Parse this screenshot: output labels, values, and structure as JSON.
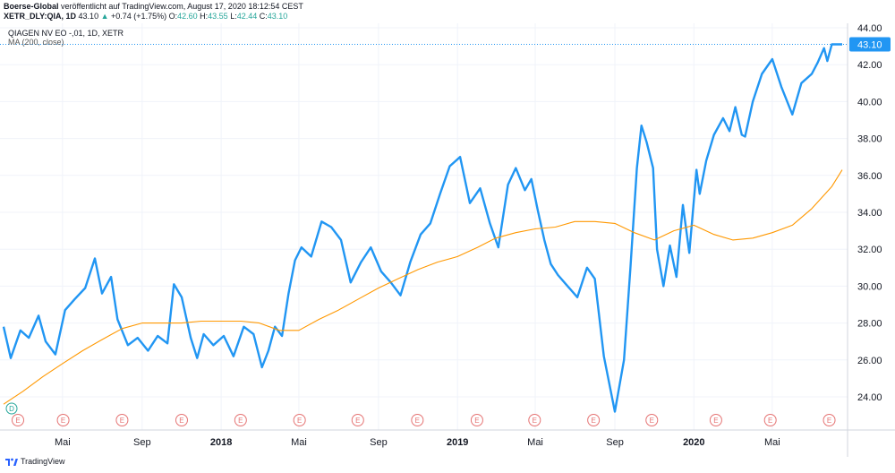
{
  "header": {
    "publisher": "Boerse-Global",
    "published_text": "veröffentlicht auf TradingView.com, August 17, 2020 18:12:54 CEST",
    "symbol": "XETR_DLY:QIA, 1D",
    "last": "43.10",
    "change_arrow": "▲",
    "change": "+0.74 (+1.75%)",
    "open_label": "O:",
    "open": "42.60",
    "high_label": "H:",
    "high": "43.55",
    "low_label": "L:",
    "low": "42.44",
    "close_label": "C:",
    "close": "43.10"
  },
  "legend": {
    "instrument": "QIAGEN NV EO -,01, 1D, XETR",
    "ma": "MA (200, close)"
  },
  "footer": {
    "brand": "TradingView"
  },
  "colors": {
    "price": "#2196f3",
    "ma": "#ff9800",
    "last_badge": "#2196f3",
    "event": "#e57373",
    "dividend": "#26a69a"
  },
  "chart_data": {
    "type": "line",
    "title": "QIAGEN NV EO -,01, 1D, XETR",
    "y_ticks": [
      "24.00",
      "26.00",
      "28.00",
      "30.00",
      "32.00",
      "34.00",
      "36.00",
      "38.00",
      "40.00",
      "42.00",
      "44.00"
    ],
    "ylim": [
      22.3,
      44.3
    ],
    "x_ticks": [
      "Mai",
      "Sep",
      "2018",
      "Mai",
      "Sep",
      "2019",
      "Mai",
      "Sep",
      "2020",
      "Mai"
    ],
    "x_range": [
      "2017-01-30",
      "2020-08-17"
    ],
    "last_value_label": "43.10",
    "grid": true,
    "series": [
      {
        "name": "QIAGEN NV EO -,01, 1D, XETR",
        "x": [
          "2017-01-30",
          "2017-02-10",
          "2017-02-25",
          "2017-03-10",
          "2017-03-25",
          "2017-04-05",
          "2017-04-20",
          "2017-05-05",
          "2017-05-20",
          "2017-06-05",
          "2017-06-20",
          "2017-07-01",
          "2017-07-15",
          "2017-07-25",
          "2017-08-10",
          "2017-08-25",
          "2017-09-10",
          "2017-09-25",
          "2017-10-10",
          "2017-10-20",
          "2017-11-01",
          "2017-11-15",
          "2017-11-25",
          "2017-12-05",
          "2017-12-20",
          "2018-01-05",
          "2018-01-20",
          "2018-02-05",
          "2018-02-20",
          "2018-03-05",
          "2018-03-15",
          "2018-03-25",
          "2018-04-05",
          "2018-04-15",
          "2018-04-25",
          "2018-05-05",
          "2018-05-20",
          "2018-06-05",
          "2018-06-20",
          "2018-07-05",
          "2018-07-20",
          "2018-08-05",
          "2018-08-20",
          "2018-09-05",
          "2018-09-20",
          "2018-10-05",
          "2018-10-20",
          "2018-11-05",
          "2018-11-20",
          "2018-12-05",
          "2018-12-20",
          "2019-01-05",
          "2019-01-20",
          "2019-02-05",
          "2019-02-20",
          "2019-03-05",
          "2019-03-20",
          "2019-04-01",
          "2019-04-15",
          "2019-04-25",
          "2019-05-05",
          "2019-05-15",
          "2019-05-25",
          "2019-06-05",
          "2019-06-20",
          "2019-07-05",
          "2019-07-20",
          "2019-08-01",
          "2019-08-15",
          "2019-09-01",
          "2019-09-15",
          "2019-09-25",
          "2019-10-05",
          "2019-10-12",
          "2019-10-20",
          "2019-10-30",
          "2019-11-05",
          "2019-11-15",
          "2019-11-25",
          "2019-12-05",
          "2019-12-15",
          "2019-12-25",
          "2020-01-05",
          "2020-01-10",
          "2020-01-20",
          "2020-02-01",
          "2020-02-15",
          "2020-02-25",
          "2020-03-05",
          "2020-03-15",
          "2020-03-20",
          "2020-04-01",
          "2020-04-15",
          "2020-05-01",
          "2020-05-15",
          "2020-06-01",
          "2020-06-15",
          "2020-07-01",
          "2020-07-10",
          "2020-07-20",
          "2020-07-25",
          "2020-08-01",
          "2020-08-10",
          "2020-08-17"
        ],
        "values": [
          27.8,
          26.1,
          27.6,
          27.2,
          28.4,
          27.0,
          26.3,
          28.7,
          29.3,
          29.9,
          31.5,
          29.6,
          30.5,
          28.2,
          26.8,
          27.2,
          26.5,
          27.3,
          26.9,
          30.1,
          29.4,
          27.2,
          26.1,
          27.4,
          26.8,
          27.3,
          26.2,
          27.8,
          27.4,
          25.6,
          26.5,
          27.8,
          27.3,
          29.6,
          31.4,
          32.1,
          31.6,
          33.5,
          33.2,
          32.5,
          30.2,
          31.3,
          32.1,
          30.8,
          30.2,
          29.5,
          31.3,
          32.8,
          33.4,
          35.0,
          36.5,
          37.0,
          34.5,
          35.3,
          33.4,
          32.1,
          35.5,
          36.4,
          35.2,
          35.8,
          34.1,
          32.5,
          31.2,
          30.6,
          30.0,
          29.4,
          31.0,
          30.4,
          26.2,
          23.2,
          26.0,
          31.0,
          36.4,
          38.7,
          37.8,
          36.4,
          32.0,
          30.0,
          32.2,
          30.5,
          34.4,
          31.8,
          36.3,
          35.0,
          36.8,
          38.2,
          39.1,
          38.4,
          39.7,
          38.2,
          38.1,
          40.0,
          41.5,
          42.3,
          40.8,
          39.3,
          41.0,
          41.5,
          42.1,
          42.9,
          42.2,
          43.1,
          43.1,
          43.1
        ]
      },
      {
        "name": "MA (200, close)",
        "x": [
          "2017-01-30",
          "2017-03-01",
          "2017-04-01",
          "2017-05-01",
          "2017-06-01",
          "2017-07-01",
          "2017-08-01",
          "2017-09-01",
          "2017-10-01",
          "2017-11-01",
          "2017-12-01",
          "2018-01-01",
          "2018-02-01",
          "2018-03-01",
          "2018-04-01",
          "2018-05-01",
          "2018-06-01",
          "2018-07-01",
          "2018-08-01",
          "2018-09-01",
          "2018-10-01",
          "2018-11-01",
          "2018-12-01",
          "2019-01-01",
          "2019-02-01",
          "2019-03-01",
          "2019-04-01",
          "2019-05-01",
          "2019-06-01",
          "2019-07-01",
          "2019-08-01",
          "2019-09-01",
          "2019-10-01",
          "2019-11-01",
          "2019-12-01",
          "2020-01-01",
          "2020-02-01",
          "2020-03-01",
          "2020-04-01",
          "2020-05-01",
          "2020-06-01",
          "2020-07-01",
          "2020-08-01",
          "2020-08-17"
        ],
        "values": [
          23.6,
          24.3,
          25.1,
          25.8,
          26.5,
          27.1,
          27.7,
          28.0,
          28.0,
          28.0,
          28.1,
          28.1,
          28.1,
          28.0,
          27.6,
          27.6,
          28.2,
          28.7,
          29.3,
          29.9,
          30.4,
          30.9,
          31.3,
          31.6,
          32.1,
          32.6,
          32.9,
          33.1,
          33.2,
          33.5,
          33.5,
          33.4,
          32.9,
          32.5,
          33.0,
          33.3,
          32.8,
          32.5,
          32.6,
          32.9,
          33.3,
          34.2,
          35.4,
          36.3
        ]
      }
    ]
  }
}
